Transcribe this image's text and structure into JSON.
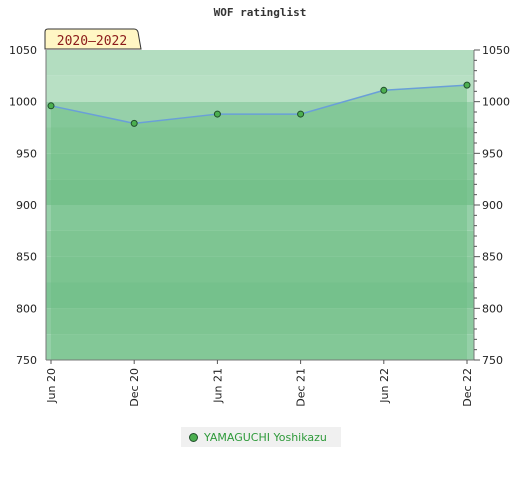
{
  "chart_data": {
    "type": "line",
    "title": "WOF ratinglist",
    "period_label": "2020–2022",
    "x": [
      "Jun 20",
      "Dec 20",
      "Jun 21",
      "Dec 21",
      "Jun 22",
      "Dec 22"
    ],
    "series": [
      {
        "name": "YAMAGUCHI Yoshikazu",
        "values": [
          996,
          979,
          988,
          988,
          1011,
          1016
        ]
      }
    ],
    "ylim": [
      750,
      1050
    ],
    "yticks": [
      750,
      800,
      850,
      900,
      950,
      1000,
      1050
    ],
    "xlabel": "",
    "ylabel": "",
    "grid": false,
    "legend_position": "bottom-center",
    "colors": {
      "line": "#6a9fd8",
      "marker": "#4caf50",
      "marker_edge": "#1f4f2a",
      "area": "#6dbf82"
    }
  }
}
